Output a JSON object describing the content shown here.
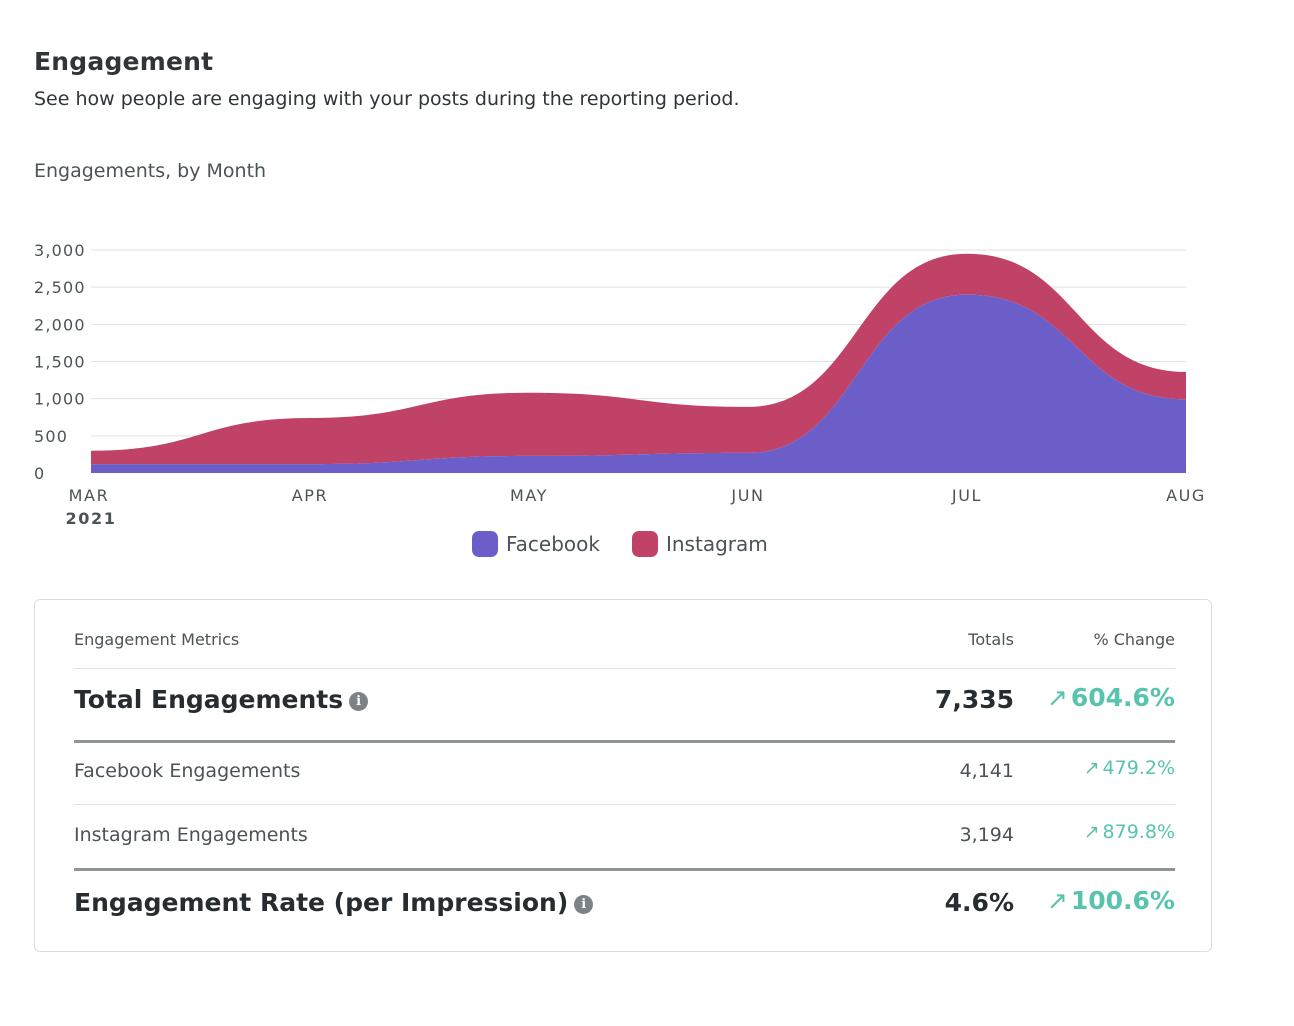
{
  "section": {
    "title": "Engagement",
    "subtitle": "See how people are engaging with your posts during the reporting period."
  },
  "chart_data": {
    "type": "area",
    "stacked": true,
    "title": "Engagements, by Month",
    "x": [
      "MAR",
      "APR",
      "MAY",
      "JUN",
      "JUL",
      "AUG"
    ],
    "x_year_label": "2021",
    "series": [
      {
        "name": "Facebook",
        "color": "#6c5ec9",
        "values": [
          120,
          120,
          230,
          270,
          2400,
          990
        ]
      },
      {
        "name": "Instagram",
        "color": "#c04266",
        "values": [
          180,
          620,
          850,
          620,
          550,
          370
        ]
      }
    ],
    "ylim": [
      0,
      3000
    ],
    "yticks": [
      0,
      500,
      1000,
      1500,
      2000,
      2500,
      3000
    ],
    "ytick_labels": [
      "0",
      "500",
      "1,000",
      "1,500",
      "2,000",
      "2,500",
      "3,000"
    ],
    "grid": true,
    "legend": "bottom"
  },
  "metrics": {
    "header": {
      "name": "Engagement Metrics",
      "totals": "Totals",
      "change": "% Change"
    },
    "total_engagements": {
      "label": "Total Engagements",
      "total": "7,335",
      "change": "604.6%"
    },
    "facebook_engagements": {
      "label": "Facebook Engagements",
      "total": "4,141",
      "change": "479.2%"
    },
    "instagram_engagements": {
      "label": "Instagram Engagements",
      "total": "3,194",
      "change": "879.8%"
    },
    "engagement_rate": {
      "label": "Engagement Rate (per Impression)",
      "total": "4.6%",
      "change": "100.6%"
    },
    "arrow_glyph": "↗",
    "positive_color": "#59c3ae"
  }
}
